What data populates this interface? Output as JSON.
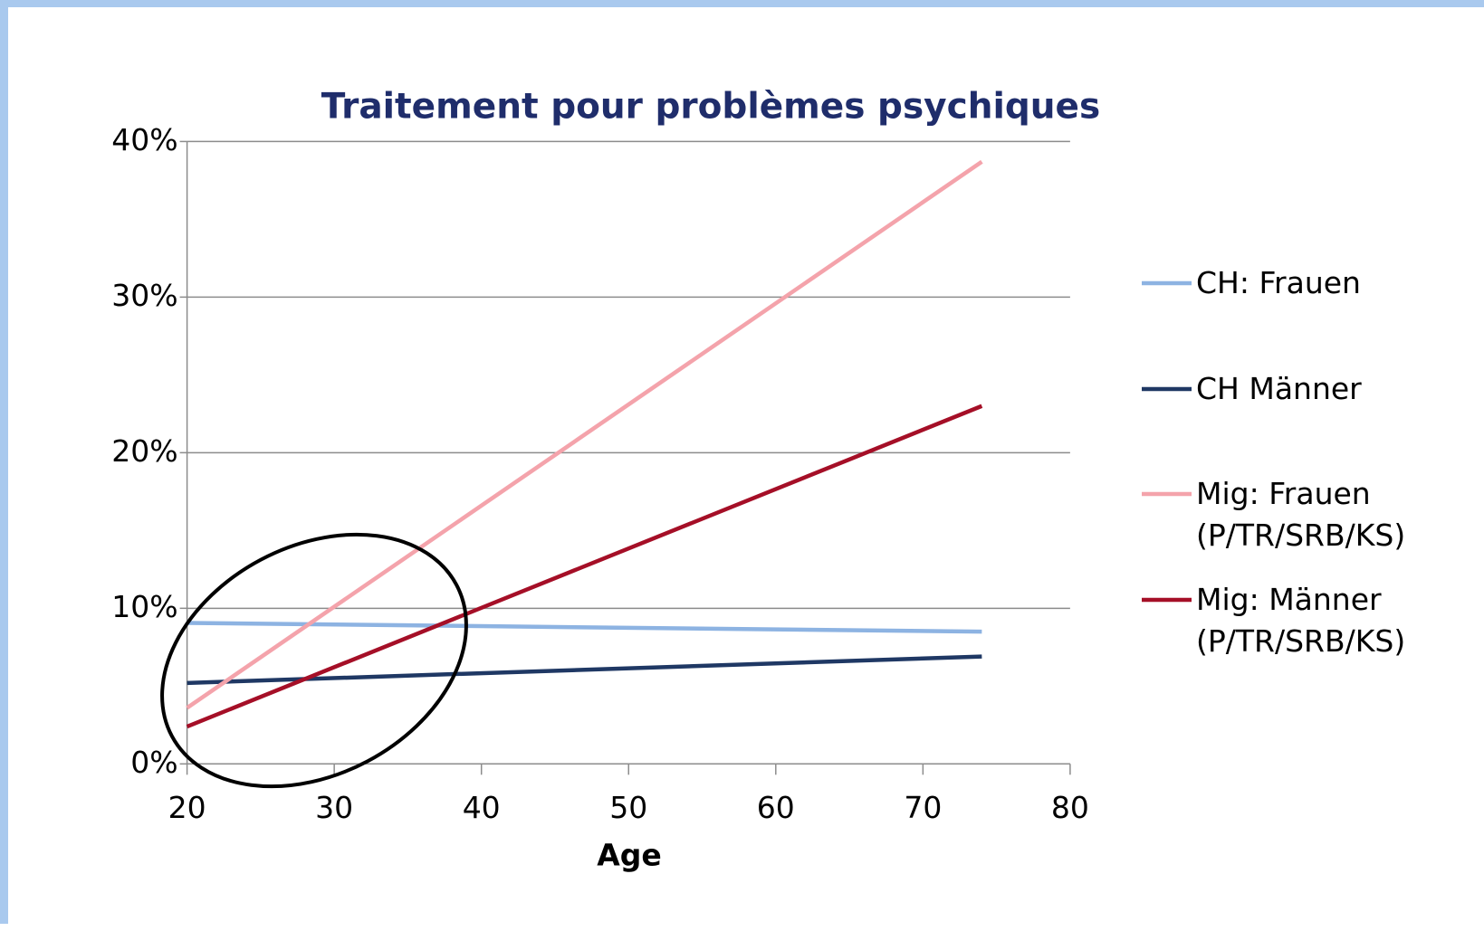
{
  "chart_data": {
    "type": "line",
    "title": "Traitement pour problèmes psychiques",
    "x_label": "Age",
    "x": [
      20,
      74
    ],
    "series": [
      {
        "name": "CH: Frauen",
        "color": "#8db3e2",
        "values": [
          9.06,
          8.5
        ]
      },
      {
        "name": "CH Männer",
        "color": "#1f3864",
        "values": [
          5.2,
          6.9
        ]
      },
      {
        "name": "Mig: Frauen (P/TR/SRB/KS)",
        "color": "#f4a3ab",
        "values": [
          3.6,
          38.7
        ]
      },
      {
        "name": "Mig: Männer (P/TR/SRB/KS)",
        "color": "#a50f27",
        "values": [
          2.4,
          23.0
        ]
      }
    ],
    "xlim": [
      20,
      80
    ],
    "xticks": [
      20,
      30,
      40,
      50,
      60,
      70,
      80
    ],
    "ylim": [
      0,
      40
    ],
    "yticks": [
      {
        "value": 0,
        "label": "0%"
      },
      {
        "value": 10,
        "label": "10%"
      },
      {
        "value": 20,
        "label": "20%"
      },
      {
        "value": 30,
        "label": "30%"
      },
      {
        "value": 40,
        "label": "40%"
      }
    ],
    "grid": true,
    "legend": "right"
  }
}
